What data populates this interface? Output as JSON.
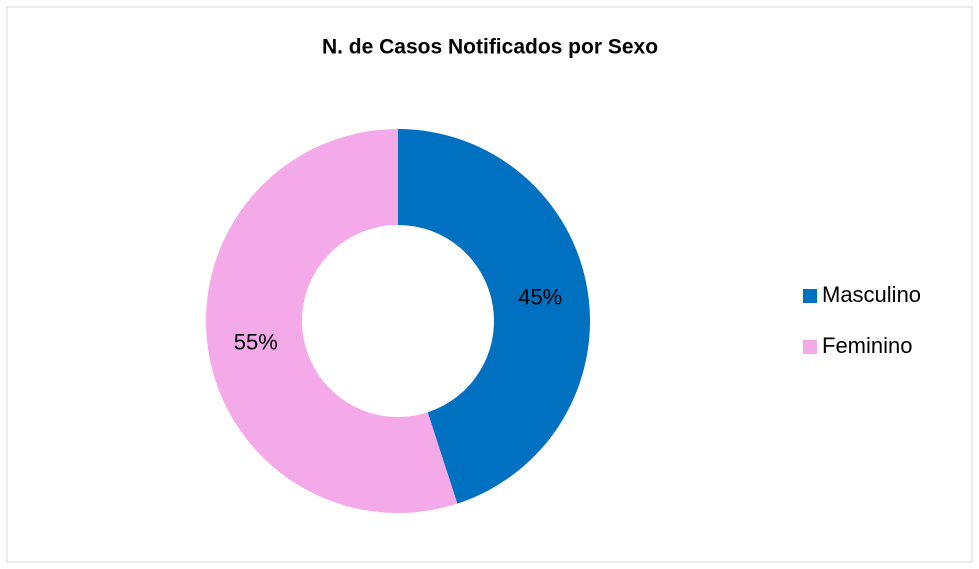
{
  "chart_data": {
    "type": "donut",
    "title": "N. de Casos Notificados por Sexo",
    "categories": [
      "Masculino",
      "Feminino"
    ],
    "values": [
      45,
      55
    ],
    "value_labels": [
      "45%",
      "55%"
    ],
    "colors": [
      "#0070c0",
      "#f4a9e8"
    ],
    "legend": "right"
  }
}
